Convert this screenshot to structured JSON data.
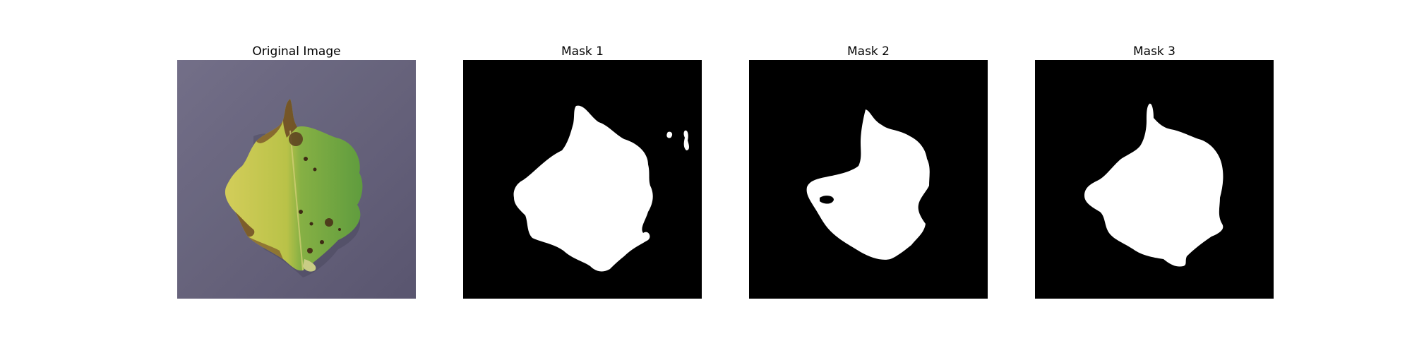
{
  "figure": {
    "panels": [
      {
        "title": "Original Image",
        "kind": "photo"
      },
      {
        "title": "Mask 1",
        "kind": "mask"
      },
      {
        "title": "Mask 2",
        "kind": "mask"
      },
      {
        "title": "Mask 3",
        "kind": "mask"
      }
    ]
  },
  "colors": {
    "background": "#ffffff",
    "mask_background": "#000000",
    "mask_foreground": "#ffffff",
    "photo_background": "#6f6b86",
    "leaf_green": "#6aa442",
    "leaf_yellow": "#c9c54a",
    "leaf_brown": "#6e4a24"
  }
}
